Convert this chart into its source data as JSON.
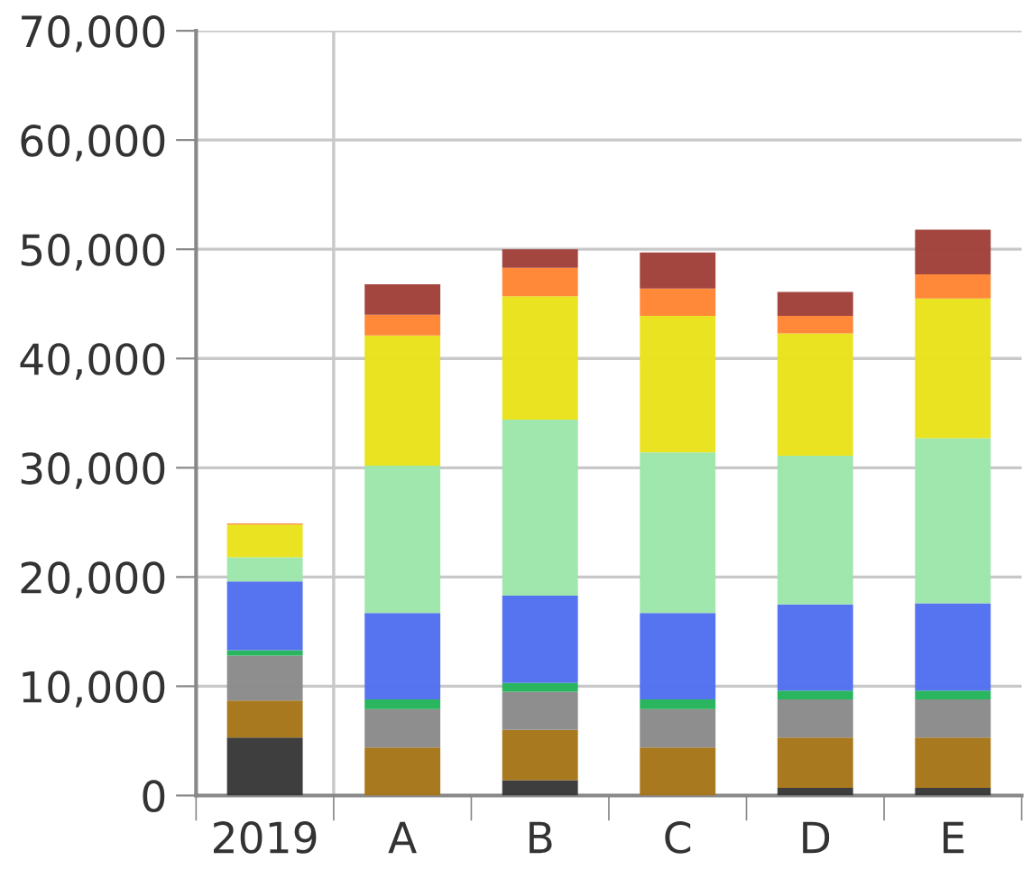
{
  "chart_data": {
    "type": "bar",
    "stacked": true,
    "categories": [
      "2019",
      "A",
      "B",
      "C",
      "D",
      "E"
    ],
    "series": [
      {
        "color": "#383838",
        "values": [
          5300,
          0,
          1400,
          0,
          700,
          700
        ]
      },
      {
        "color": "#a67518",
        "values": [
          3400,
          4400,
          4600,
          4400,
          4600,
          4600
        ]
      },
      {
        "color": "#8a8a8a",
        "values": [
          4100,
          3500,
          3500,
          3500,
          3500,
          3500
        ]
      },
      {
        "color": "#22b45a",
        "values": [
          500,
          900,
          800,
          900,
          800,
          800
        ]
      },
      {
        "color": "#5270f0",
        "values": [
          6300,
          7900,
          8000,
          7900,
          7900,
          8000
        ]
      },
      {
        "color": "#9ce6aa",
        "values": [
          2200,
          13500,
          16100,
          14700,
          13600,
          15100
        ]
      },
      {
        "color": "#e8e21a",
        "values": [
          3000,
          11900,
          11300,
          12500,
          11200,
          12800
        ]
      },
      {
        "color": "#ff8533",
        "values": [
          100,
          1900,
          2600,
          2500,
          1600,
          2200
        ]
      },
      {
        "color": "#a0403a",
        "values": [
          0,
          2800,
          1700,
          3300,
          2200,
          4100
        ]
      }
    ],
    "ylim": [
      0,
      70000
    ],
    "yticks": [
      {
        "value": 0,
        "label": "0"
      },
      {
        "value": 10000,
        "label": "10,000"
      },
      {
        "value": 20000,
        "label": "20,000"
      },
      {
        "value": 30000,
        "label": "30,000"
      },
      {
        "value": 40000,
        "label": "40,000"
      },
      {
        "value": 50000,
        "label": "50,000"
      },
      {
        "value": 60000,
        "label": "60,000"
      },
      {
        "value": 70000,
        "label": "70,000"
      }
    ],
    "grid": "y"
  }
}
